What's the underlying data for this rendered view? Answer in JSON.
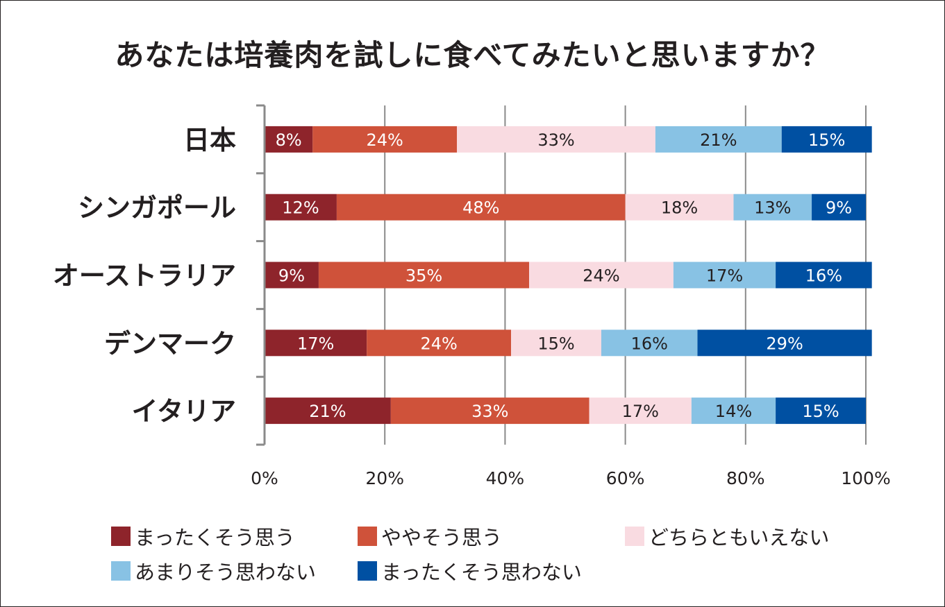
{
  "title": "あなたは培養肉を試しに食べてみたいと思いますか？",
  "chart_data": {
    "type": "bar",
    "orientation": "horizontal",
    "stacked": true,
    "percent_stacked": true,
    "title": "あなたは培養肉を試しに食べてみたいと思いますか？",
    "categories": [
      "日本",
      "シンガポール",
      "オーストラリア",
      "デンマーク",
      "イタリア"
    ],
    "series": [
      {
        "name": "まったくそう思う",
        "color": "#8e242b",
        "values": [
          8,
          12,
          9,
          17,
          21
        ]
      },
      {
        "name": "ややそう思う",
        "color": "#cf523a",
        "values": [
          24,
          48,
          35,
          24,
          33
        ]
      },
      {
        "name": "どちらともいえない",
        "color": "#f9dbe1",
        "values": [
          33,
          18,
          24,
          15,
          17
        ]
      },
      {
        "name": "あまりそう思わない",
        "color": "#88c2e4",
        "values": [
          21,
          13,
          17,
          16,
          14
        ]
      },
      {
        "name": "まったくそう思わない",
        "color": "#0050a2",
        "values": [
          15,
          9,
          16,
          29,
          15
        ]
      }
    ],
    "label_colors": [
      "#ffffff",
      "#ffffff",
      "#231f20",
      "#231f20",
      "#ffffff"
    ],
    "x_ticks": [
      "0%",
      "20%",
      "40%",
      "60%",
      "80%",
      "100%"
    ],
    "xlim": [
      0,
      100
    ],
    "grid": true,
    "legend_position": "bottom"
  }
}
